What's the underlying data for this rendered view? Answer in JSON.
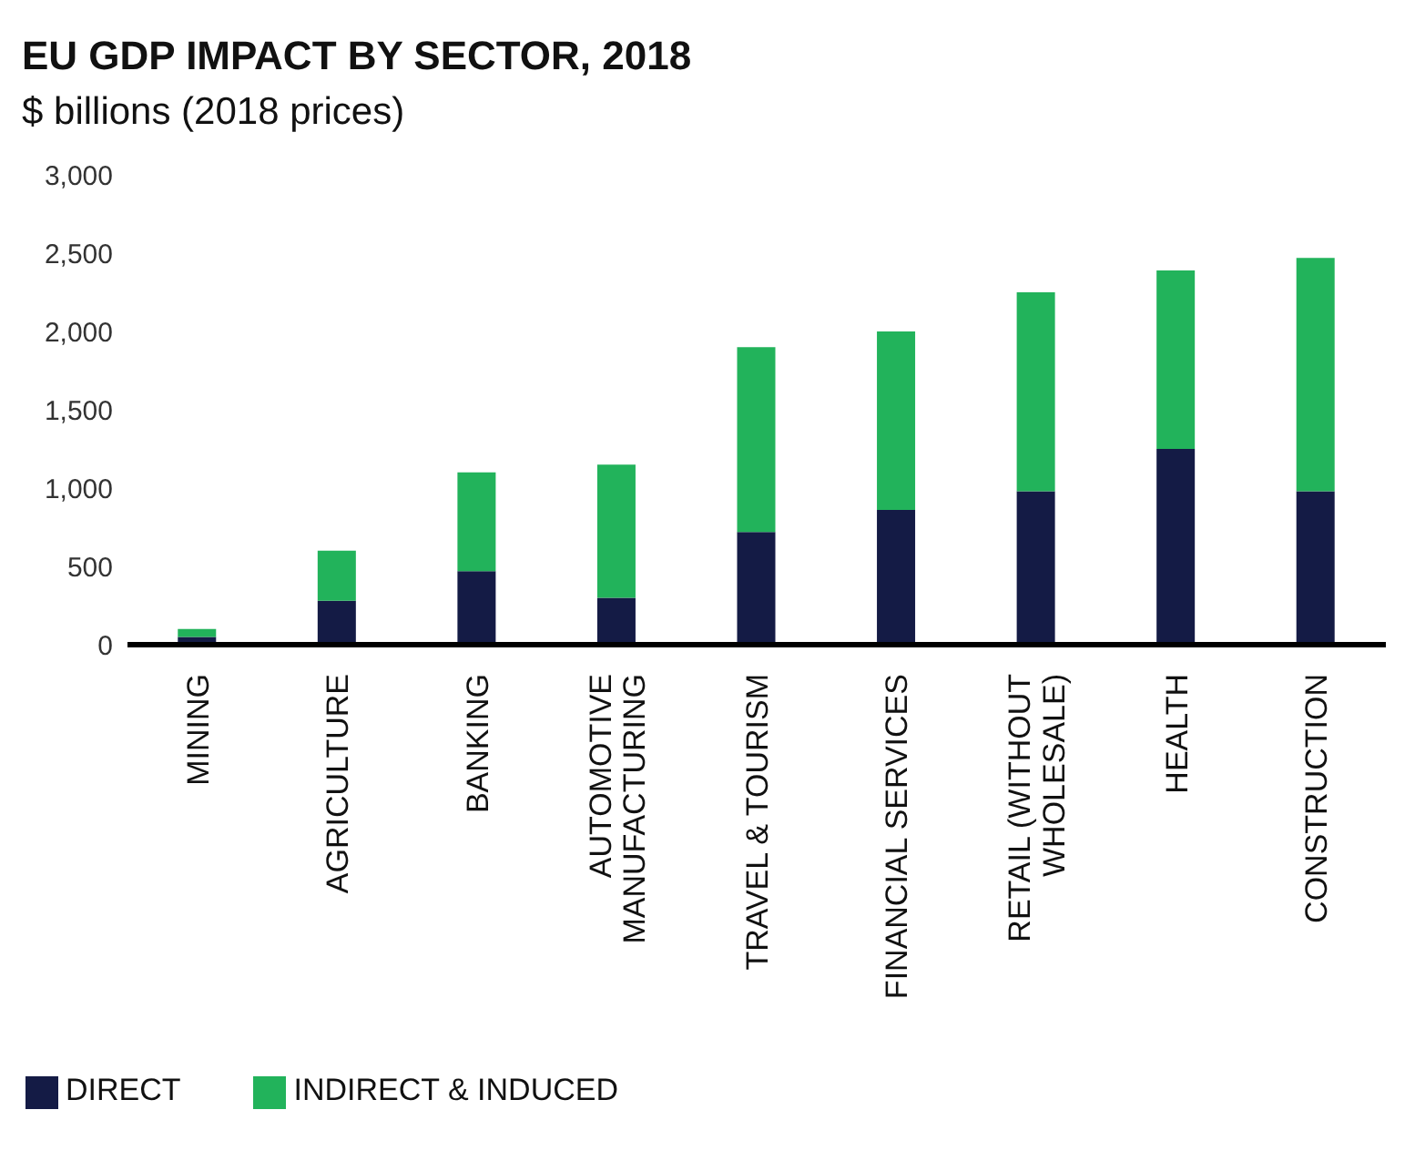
{
  "chart_data": {
    "type": "bar",
    "title": "EU GDP IMPACT BY SECTOR, 2018",
    "subtitle": "$ billions (2018 prices)",
    "categories": [
      "MINING",
      "AGRICULTURE",
      "BANKING",
      "AUTOMOTIVE\nMANUFACTURING",
      "TRAVEL & TOURISM",
      "FINANCIAL SERVICES",
      "RETAIL (WITHOUT\nWHOLESALE)",
      "HEALTH",
      "CONSTRUCTION"
    ],
    "series": [
      {
        "name": "DIRECT",
        "color": "#141b45",
        "values": [
          50,
          280,
          470,
          300,
          720,
          860,
          980,
          1250,
          980
        ]
      },
      {
        "name": "INDIRECT & INDUCED",
        "color": "#22b35b",
        "values": [
          50,
          320,
          630,
          850,
          1180,
          1140,
          1270,
          1140,
          1490
        ]
      }
    ],
    "stacked": true,
    "ylim": [
      0,
      3000
    ],
    "yticks": [
      0,
      {
        "value": 500,
        "label": "500"
      },
      {
        "value": 1000,
        "label": "1,000"
      },
      {
        "value": 1500,
        "label": "1,500"
      },
      {
        "value": 2000,
        "label": "2,000"
      },
      {
        "value": 2500,
        "label": "2,500"
      },
      {
        "value": 3000,
        "label": "3,000"
      }
    ],
    "grid": false,
    "legend": "bottom left"
  }
}
